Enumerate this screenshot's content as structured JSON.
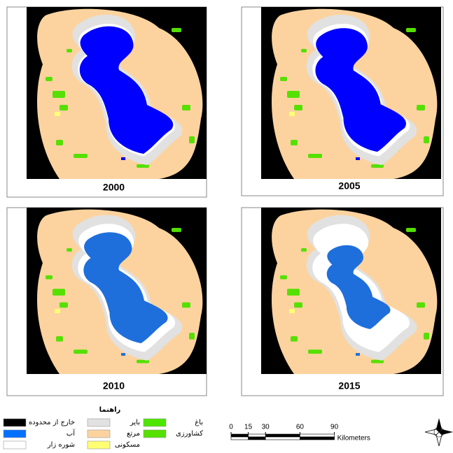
{
  "panels": [
    {
      "year": "2000"
    },
    {
      "year": "2005"
    },
    {
      "year": "2010"
    },
    {
      "year": "2015"
    }
  ],
  "legend": {
    "title": "راهنما",
    "items": [
      {
        "label": "خارج از محدوده",
        "color": "#000000"
      },
      {
        "label": "بایر",
        "color": "#e1e1e1"
      },
      {
        "label": "باغ",
        "color": "#4ce600"
      },
      {
        "label": "آب",
        "color": "#0070ff"
      },
      {
        "label": "مرتع",
        "color": "#fcd39f"
      },
      {
        "label": "کشاورزی",
        "color": "#55e000"
      },
      {
        "label": "شوره زار",
        "color": "#ffffff"
      },
      {
        "label": "مسکونی",
        "color": "#ffff73"
      }
    ]
  },
  "scale_bar": {
    "ticks": [
      0,
      15,
      30,
      60,
      90
    ],
    "unit": "Kilometers"
  }
}
